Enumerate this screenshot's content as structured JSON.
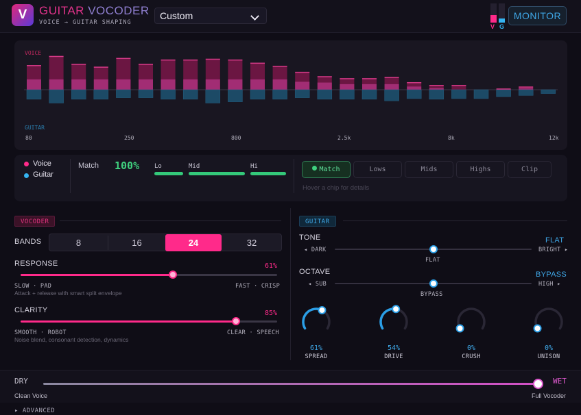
{
  "header": {
    "logo_letter": "V",
    "title_part1": "GUITAR",
    "title_part2": "VOCODER",
    "subtitle": "VOICE → GUITAR SHAPING",
    "preset_value": "Custom",
    "meter_v_label": "V",
    "meter_g_label": "G",
    "meter_v_level": 0.4,
    "meter_g_level": 0.2,
    "monitor_label": "MONITOR",
    "colors": {
      "voice": "#ff2a8a",
      "guitar": "#35b3f0"
    }
  },
  "spectrum": {
    "voice_label": "VOICE",
    "guitar_label": "GUITAR",
    "freq_labels": [
      "80",
      "250",
      "800",
      "2.5k",
      "8k",
      "12k"
    ],
    "bands": [
      {
        "voice": 0.62,
        "guitar": 0.3,
        "mid": 0.26
      },
      {
        "voice": 0.85,
        "guitar": 0.42,
        "mid": 0.26
      },
      {
        "voice": 0.65,
        "guitar": 0.3,
        "mid": 0.26
      },
      {
        "voice": 0.58,
        "guitar": 0.3,
        "mid": 0.26
      },
      {
        "voice": 0.8,
        "guitar": 0.25,
        "mid": 0.26
      },
      {
        "voice": 0.65,
        "guitar": 0.25,
        "mid": 0.26
      },
      {
        "voice": 0.76,
        "guitar": 0.3,
        "mid": 0.26
      },
      {
        "voice": 0.76,
        "guitar": 0.3,
        "mid": 0.26
      },
      {
        "voice": 0.78,
        "guitar": 0.42,
        "mid": 0.26
      },
      {
        "voice": 0.76,
        "guitar": 0.38,
        "mid": 0.26
      },
      {
        "voice": 0.68,
        "guitar": 0.3,
        "mid": 0.26
      },
      {
        "voice": 0.6,
        "guitar": 0.3,
        "mid": 0.26
      },
      {
        "voice": 0.45,
        "guitar": 0.25,
        "mid": 0.2
      },
      {
        "voice": 0.34,
        "guitar": 0.3,
        "mid": 0.18
      },
      {
        "voice": 0.29,
        "guitar": 0.3,
        "mid": 0.14
      },
      {
        "voice": 0.29,
        "guitar": 0.3,
        "mid": 0.14
      },
      {
        "voice": 0.32,
        "guitar": 0.35,
        "mid": 0.14
      },
      {
        "voice": 0.19,
        "guitar": 0.28,
        "mid": 0.08
      },
      {
        "voice": 0.12,
        "guitar": 0.3,
        "mid": 0.04
      },
      {
        "voice": 0.12,
        "guitar": 0.28,
        "mid": 0.0
      },
      {
        "voice": 0.0,
        "guitar": 0.28,
        "mid": 0.0
      },
      {
        "voice": 0.03,
        "guitar": 0.22,
        "mid": 0.0
      },
      {
        "voice": 0.08,
        "guitar": 0.18,
        "mid": 0.04
      },
      {
        "voice": 0.0,
        "guitar": 0.12,
        "mid": 0.0
      }
    ]
  },
  "match_panel": {
    "legend_voice": "Voice",
    "legend_guitar": "Guitar",
    "match_label": "Match",
    "match_value": "100%",
    "bands": [
      {
        "label": "Lo",
        "level": 1.0
      },
      {
        "label": "Mid",
        "level": 1.0
      },
      {
        "label": "Hi",
        "level": 1.0
      }
    ],
    "chips": [
      "Match",
      "Lows",
      "Mids",
      "Highs",
      "Clip"
    ],
    "active_chip": "Match",
    "hint": "Hover a chip for details"
  },
  "vocoder": {
    "section_label": "VOCODER",
    "bands_label": "BANDS",
    "bands_options": [
      "8",
      "16",
      "24",
      "32"
    ],
    "bands_selected": "24",
    "response": {
      "label": "RESPONSE",
      "value": "61%",
      "level": 0.61,
      "left": "SLOW · PAD",
      "right": "FAST · CRISP",
      "hint": "Attack + release with smart split envelope"
    },
    "clarity": {
      "label": "CLARITY",
      "value": "85%",
      "level": 0.85,
      "left": "SMOOTH · ROBOT",
      "right": "CLEAR · SPEECH",
      "hint": "Noise blend, consonant detection, dynamics"
    }
  },
  "guitar": {
    "section_label": "GUITAR",
    "tone": {
      "label": "TONE",
      "value": "FLAT",
      "left": "◂ DARK",
      "right": "BRIGHT ▸",
      "center": "FLAT",
      "level": 0.5
    },
    "octave": {
      "label": "OCTAVE",
      "value": "BYPASS",
      "left": "◂ SUB",
      "right": "HIGH ▸",
      "center": "BYPASS",
      "level": 0.5
    },
    "knobs": [
      {
        "name": "SPREAD",
        "value": "61%",
        "level": 0.61
      },
      {
        "name": "DRIVE",
        "value": "54%",
        "level": 0.54
      },
      {
        "name": "CRUSH",
        "value": "0%",
        "level": 0.0
      },
      {
        "name": "UNISON",
        "value": "0%",
        "level": 0.0
      }
    ]
  },
  "mix": {
    "dry_label": "DRY",
    "wet_label": "WET",
    "dry_desc": "Clean Voice",
    "wet_desc": "Full Vocoder",
    "level": 1.0
  },
  "footer": {
    "advanced_label": "▸ ADVANCED"
  }
}
